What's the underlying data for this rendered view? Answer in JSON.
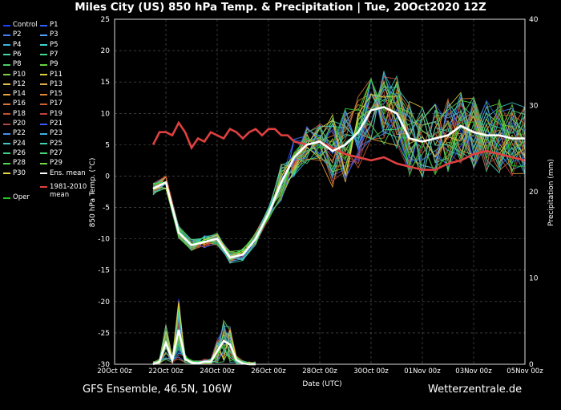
{
  "title": "Miles City  (US)  850 hPa Temp. & Precipitation | Tue, 20Oct2020 12Z",
  "footer": {
    "left": "GFS Ensemble, 46.5N, 106W",
    "right": "Wetterzentrale.de"
  },
  "colors": {
    "background": "#000000",
    "grid": "#5a5a5a",
    "ens_mean": "#ffffff",
    "climate_mean": "#e04040",
    "oper": "#22cc22"
  },
  "legend": [
    {
      "label": "Control",
      "color": "#2040ff"
    },
    {
      "label": "P1",
      "color": "#3060ff"
    },
    {
      "label": "P2",
      "color": "#4a7cff"
    },
    {
      "label": "P3",
      "color": "#4fa3ff"
    },
    {
      "label": "P4",
      "color": "#39b6e6"
    },
    {
      "label": "P5",
      "color": "#3fd0d0"
    },
    {
      "label": "P6",
      "color": "#45d6a8"
    },
    {
      "label": "P7",
      "color": "#40d890"
    },
    {
      "label": "P8",
      "color": "#4ad060"
    },
    {
      "label": "P9",
      "color": "#64d440"
    },
    {
      "label": "P10",
      "color": "#80d040"
    },
    {
      "label": "P11",
      "color": "#d8d040"
    },
    {
      "label": "P12",
      "color": "#e8c040"
    },
    {
      "label": "P13",
      "color": "#e0b050"
    },
    {
      "label": "P14",
      "color": "#e8a040"
    },
    {
      "label": "P15",
      "color": "#e08838"
    },
    {
      "label": "P16",
      "color": "#d87838"
    },
    {
      "label": "P17",
      "color": "#d06030"
    },
    {
      "label": "P18",
      "color": "#c85030"
    },
    {
      "label": "P19",
      "color": "#c04040"
    },
    {
      "label": "P20",
      "color": "#b04848"
    },
    {
      "label": "P21",
      "color": "#3a5cf0"
    },
    {
      "label": "P22",
      "color": "#4a8cf0"
    },
    {
      "label": "P23",
      "color": "#40b0e0"
    },
    {
      "label": "P24",
      "color": "#40c8c8"
    },
    {
      "label": "P25",
      "color": "#40d0b0"
    },
    {
      "label": "P26",
      "color": "#40d088"
    },
    {
      "label": "P27",
      "color": "#48d870"
    },
    {
      "label": "P28",
      "color": "#50d850"
    },
    {
      "label": "P29",
      "color": "#70d848"
    },
    {
      "label": "P30",
      "color": "#e8d840"
    },
    {
      "label": "Ens. mean",
      "color": "#ffffff"
    },
    {
      "label": "1981-2010\nmean",
      "color": "#e04040"
    },
    {
      "label": "Oper",
      "color": "#22cc22"
    }
  ],
  "chart_data": {
    "type": "line",
    "xlabel": "Date (UTC)",
    "ylabel": "850 hPa Temp. (°C)",
    "y2label": "Precipitation (mm)",
    "ylim": [
      -30,
      25
    ],
    "y2lim": [
      0,
      40
    ],
    "yticks": [
      -30,
      -25,
      -20,
      -15,
      -10,
      -5,
      0,
      5,
      10,
      15,
      20,
      25
    ],
    "y2ticks": [
      0,
      10,
      20,
      30,
      40
    ],
    "xlim_hours": [
      0,
      384
    ],
    "xtick_labels": [
      "20Oct 00z",
      "22Oct 00z",
      "24Oct 00z",
      "26Oct 00z",
      "28Oct 00z",
      "30Oct 00z",
      "01Nov 00z",
      "03Nov 00z",
      "05Nov 00z"
    ],
    "grid": true,
    "series": [
      {
        "name": "Ens. mean",
        "role": "temp",
        "x": [
          36,
          48,
          60,
          72,
          84,
          96,
          108,
          120,
          132,
          144,
          156,
          168,
          180,
          192,
          204,
          216,
          228,
          240,
          252,
          264,
          276,
          288,
          300,
          312,
          324,
          336,
          348,
          360,
          372,
          384
        ],
        "values": [
          -2,
          -1,
          -9,
          -11,
          -10.5,
          -10,
          -13,
          -12.5,
          -10,
          -6,
          -1,
          3,
          5,
          5.5,
          4,
          5,
          7,
          10.5,
          11,
          10,
          6,
          5.5,
          6,
          6.5,
          8,
          7,
          6.5,
          6.5,
          6,
          6
        ]
      },
      {
        "name": "1981-2010\nmean",
        "role": "temp",
        "x": [
          36,
          42,
          48,
          54,
          60,
          66,
          72,
          78,
          84,
          90,
          96,
          102,
          108,
          114,
          120,
          126,
          132,
          138,
          144,
          150,
          156,
          162,
          168,
          180,
          192,
          204,
          216,
          228,
          240,
          252,
          264,
          276,
          288,
          300,
          312,
          324,
          336,
          348,
          360,
          372,
          384
        ],
        "values": [
          5,
          7,
          7,
          6.5,
          8.5,
          7,
          4.5,
          6,
          5.5,
          7,
          6.5,
          6,
          7.5,
          7,
          6,
          7,
          7.5,
          6.5,
          7.5,
          7.5,
          6.5,
          6.5,
          5.5,
          5,
          5.5,
          4.5,
          3.5,
          3,
          2.5,
          3,
          2,
          1.5,
          1,
          1,
          2,
          2.5,
          3.5,
          4,
          3.5,
          3,
          2.5
        ]
      },
      {
        "name": "Ens. mean",
        "role": "precip",
        "x": [
          36,
          42,
          48,
          54,
          60,
          66,
          72,
          78,
          84,
          90,
          96,
          102,
          108,
          114,
          120,
          126,
          132
        ],
        "values": [
          0,
          0.3,
          2.5,
          0.5,
          4,
          0.6,
          0.2,
          0.1,
          0.3,
          0.3,
          1.5,
          2.7,
          2.3,
          0.5,
          0.1,
          0,
          0
        ]
      }
    ]
  }
}
